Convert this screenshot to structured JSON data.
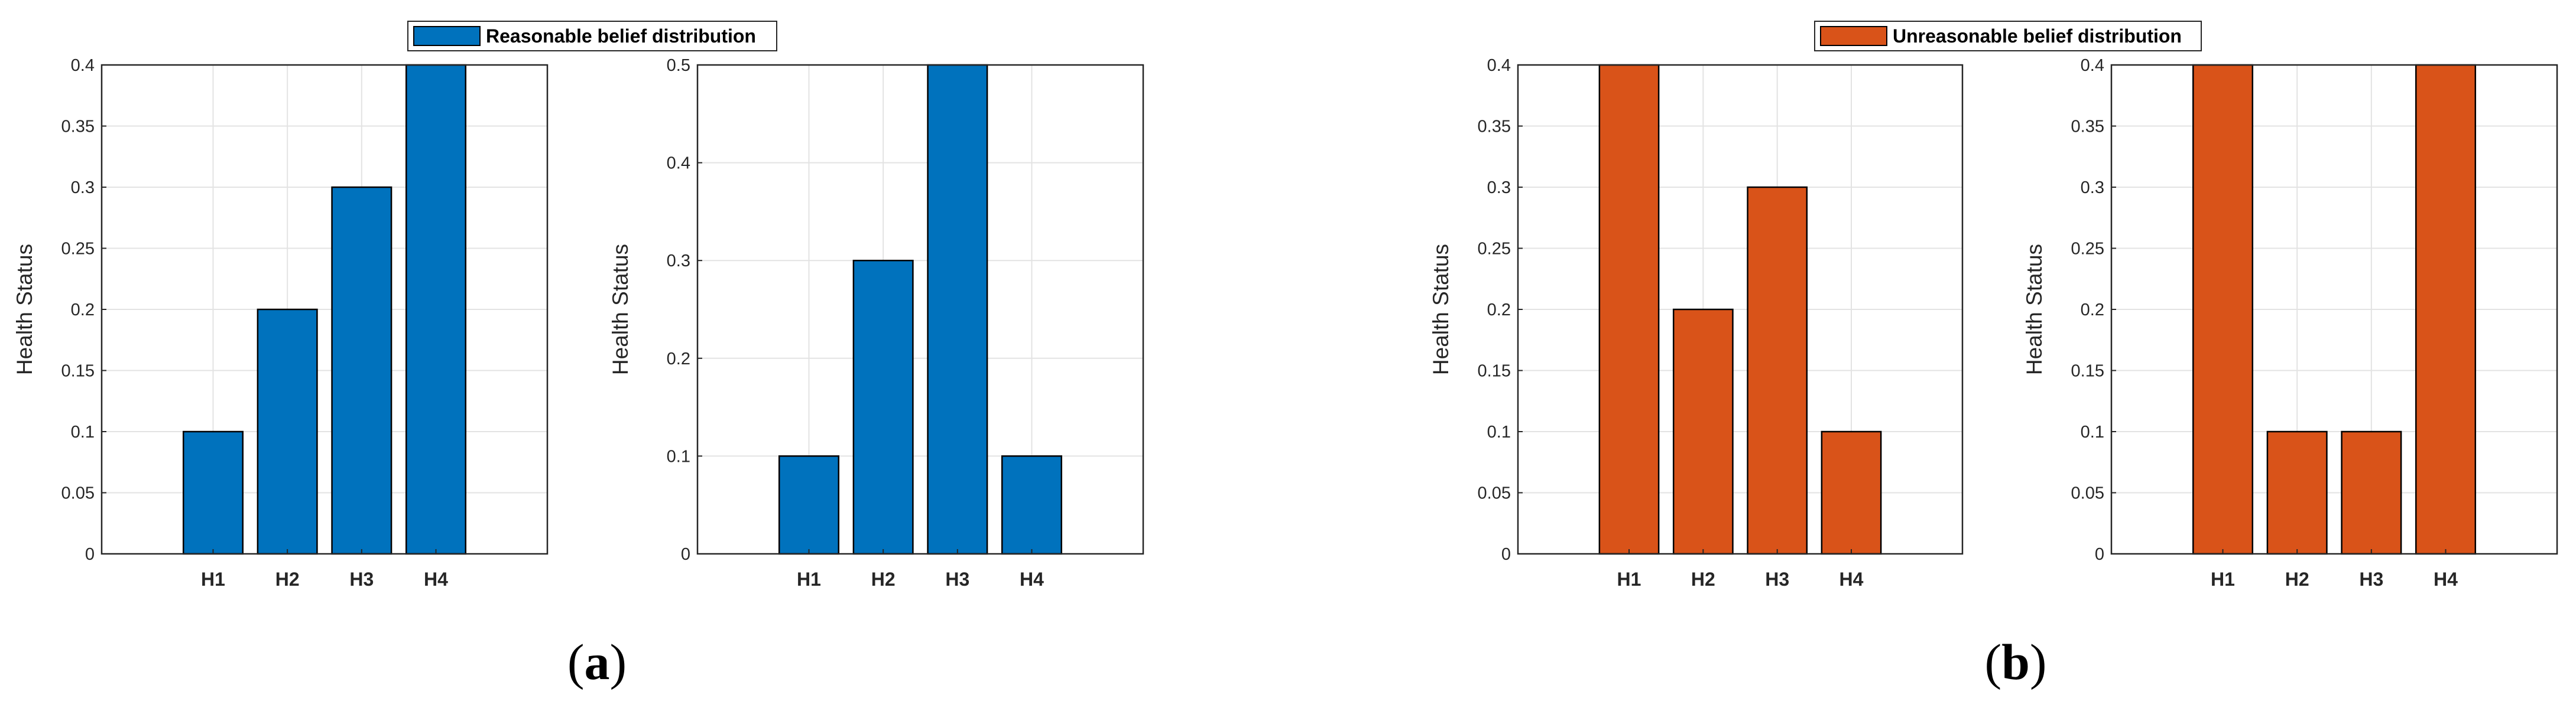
{
  "legends": [
    {
      "label": "Reasonable belief distribution",
      "color": "#0072BD"
    },
    {
      "label": "Unreasonable belief distribution",
      "color": "#D95319"
    }
  ],
  "captions": [
    {
      "open": "(",
      "letter": "a",
      "close": ")"
    },
    {
      "open": "(",
      "letter": "b",
      "close": ")"
    }
  ],
  "chart_data": [
    {
      "type": "bar",
      "categories": [
        "H1",
        "H2",
        "H3",
        "H4"
      ],
      "values": [
        0.1,
        0.2,
        0.3,
        0.4
      ],
      "ylabel": "Health Status",
      "ylim": [
        0,
        0.4
      ],
      "yticks": [
        0,
        0.05,
        0.1,
        0.15,
        0.2,
        0.25,
        0.3,
        0.35,
        0.4
      ],
      "grid": true,
      "color": "#0072BD"
    },
    {
      "type": "bar",
      "categories": [
        "H1",
        "H2",
        "H3",
        "H4"
      ],
      "values": [
        0.1,
        0.3,
        0.5,
        0.1
      ],
      "ylabel": "Health Status",
      "ylim": [
        0,
        0.5
      ],
      "yticks": [
        0,
        0.1,
        0.2,
        0.3,
        0.4,
        0.5
      ],
      "grid": true,
      "color": "#0072BD"
    },
    {
      "type": "bar",
      "categories": [
        "H1",
        "H2",
        "H3",
        "H4"
      ],
      "values": [
        0.4,
        0.2,
        0.3,
        0.1
      ],
      "ylabel": "Health Status",
      "ylim": [
        0,
        0.4
      ],
      "yticks": [
        0,
        0.05,
        0.1,
        0.15,
        0.2,
        0.25,
        0.3,
        0.35,
        0.4
      ],
      "grid": true,
      "color": "#D95319"
    },
    {
      "type": "bar",
      "categories": [
        "H1",
        "H2",
        "H3",
        "H4"
      ],
      "values": [
        0.4,
        0.1,
        0.1,
        0.4
      ],
      "ylabel": "Health Status",
      "ylim": [
        0,
        0.4
      ],
      "yticks": [
        0,
        0.05,
        0.1,
        0.15,
        0.2,
        0.25,
        0.3,
        0.35,
        0.4
      ],
      "grid": true,
      "color": "#D95319"
    }
  ]
}
